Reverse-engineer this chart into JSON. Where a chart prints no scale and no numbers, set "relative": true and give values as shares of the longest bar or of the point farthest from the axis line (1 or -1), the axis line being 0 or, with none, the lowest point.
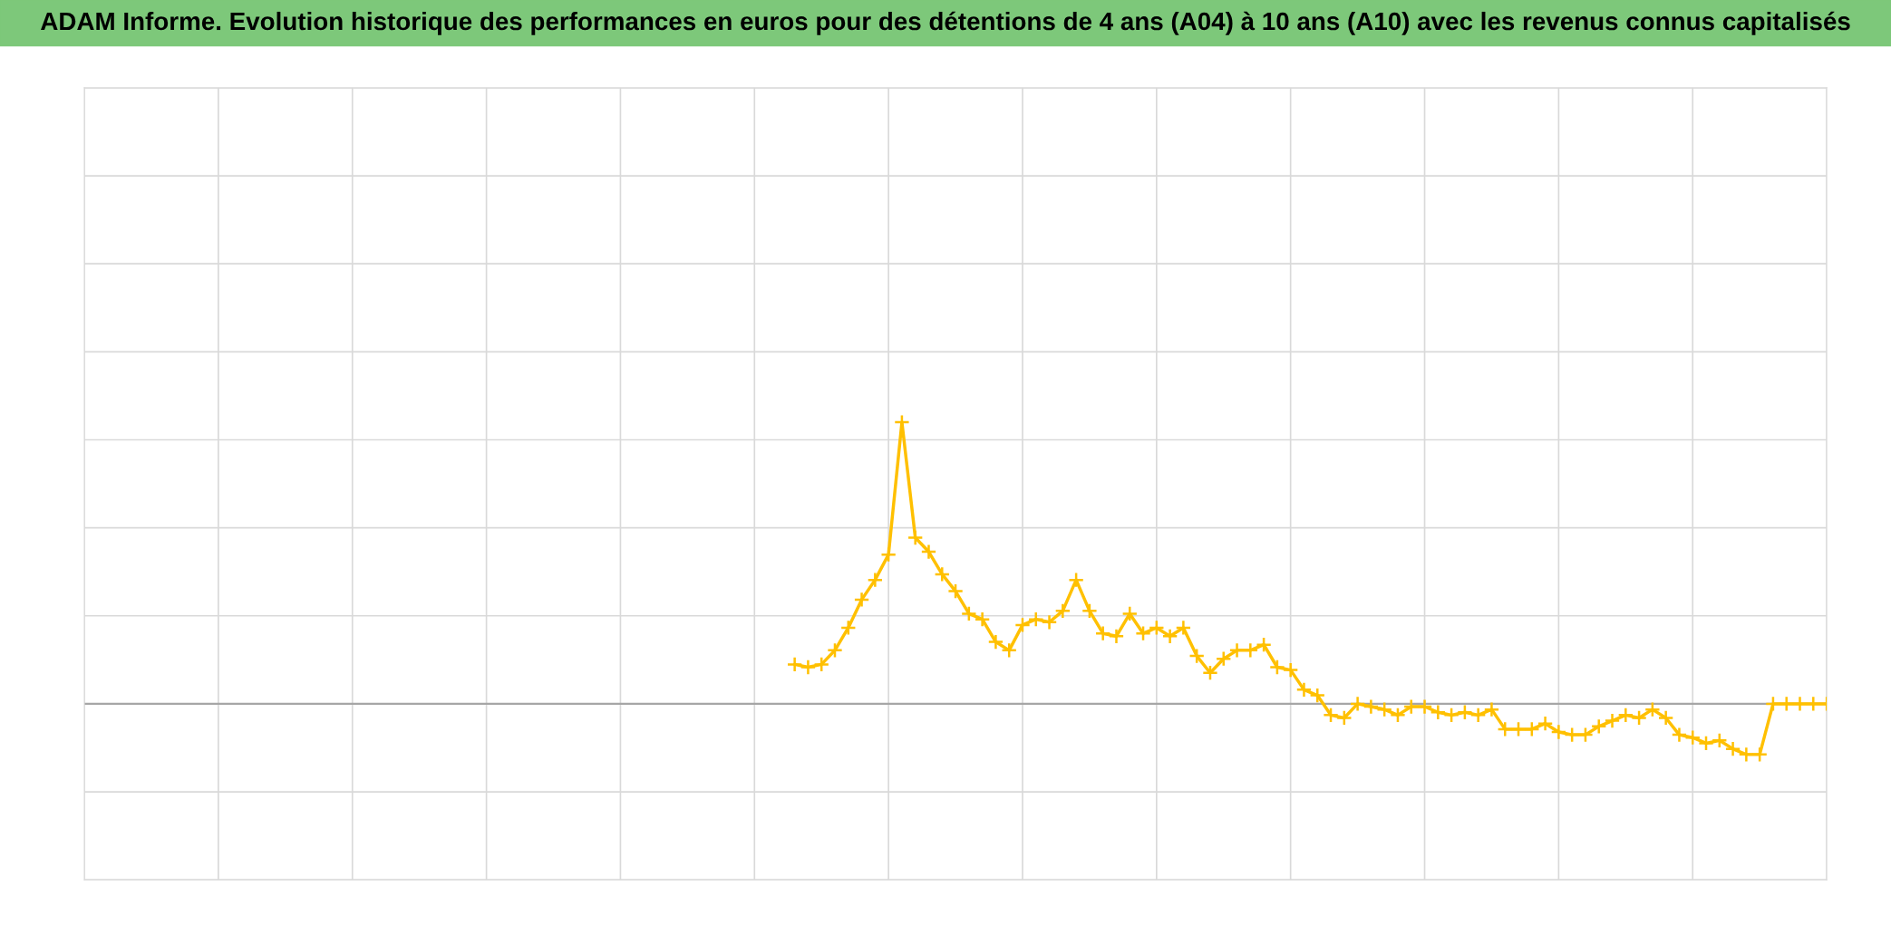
{
  "chart_data": {
    "type": "line",
    "title": "ADAM Informe. Evolution historique des performances en euros pour des détentions de 4 ans (A04) à 10 ans (A10) avec les revenus connus capitalisés",
    "relative": true,
    "marker": "cross",
    "grid": true,
    "categories": [
      null,
      null,
      null,
      null,
      null,
      null,
      null,
      null,
      null,
      null,
      null,
      null,
      null,
      null,
      null,
      null,
      null,
      null,
      null,
      null,
      null,
      null,
      null,
      null,
      null,
      null,
      null,
      null,
      null,
      null,
      null,
      null,
      null,
      null,
      null,
      null,
      null,
      null,
      null,
      null,
      null,
      null,
      null,
      null,
      null,
      null,
      null,
      null,
      null,
      null,
      null,
      null,
      null,
      null,
      null,
      null,
      null,
      null,
      null,
      null,
      null,
      null,
      null,
      null,
      null,
      null,
      null,
      null,
      null,
      null,
      null,
      null,
      null,
      null,
      null,
      null,
      null,
      null,
      null,
      null,
      null,
      null,
      null,
      null,
      null,
      null,
      null,
      null,
      null,
      null,
      null,
      null,
      null,
      null,
      null,
      null,
      null,
      null,
      null,
      null,
      null,
      null,
      null,
      null,
      null,
      null,
      null,
      null,
      null,
      null,
      null,
      null,
      null,
      null,
      null,
      null,
      null,
      null,
      null,
      null,
      null,
      null,
      null,
      null,
      null,
      null,
      null,
      null,
      null,
      null,
      null
    ],
    "series": [
      {
        "color": "#ffc000",
        "values": [
          null,
          null,
          null,
          null,
          null,
          null,
          null,
          null,
          null,
          null,
          null,
          null,
          null,
          null,
          null,
          null,
          null,
          null,
          null,
          null,
          null,
          null,
          null,
          null,
          null,
          null,
          null,
          null,
          null,
          null,
          null,
          null,
          null,
          null,
          null,
          null,
          null,
          null,
          null,
          null,
          null,
          null,
          null,
          null,
          null,
          null,
          null,
          null,
          null,
          null,
          null,
          null,
          null,
          0.14,
          0.13,
          0.14,
          0.19,
          0.27,
          0.37,
          0.44,
          0.53,
          1.0,
          0.59,
          0.54,
          0.46,
          0.4,
          0.32,
          0.3,
          0.22,
          0.19,
          0.28,
          0.3,
          0.29,
          0.33,
          0.44,
          0.33,
          0.25,
          0.24,
          0.32,
          0.25,
          0.27,
          0.24,
          0.27,
          0.17,
          0.11,
          0.16,
          0.19,
          0.19,
          0.21,
          0.13,
          0.12,
          0.05,
          0.03,
          -0.04,
          -0.05,
          0.0,
          -0.01,
          -0.02,
          -0.04,
          -0.01,
          -0.01,
          -0.03,
          -0.04,
          -0.03,
          -0.04,
          -0.02,
          -0.09,
          -0.09,
          -0.09,
          -0.07,
          -0.1,
          -0.11,
          -0.11,
          -0.08,
          -0.06,
          -0.04,
          -0.05,
          -0.02,
          -0.05,
          -0.11,
          -0.12,
          -0.14,
          -0.13,
          -0.16,
          -0.18,
          -0.18,
          0,
          0,
          0,
          0,
          0
        ]
      }
    ]
  }
}
